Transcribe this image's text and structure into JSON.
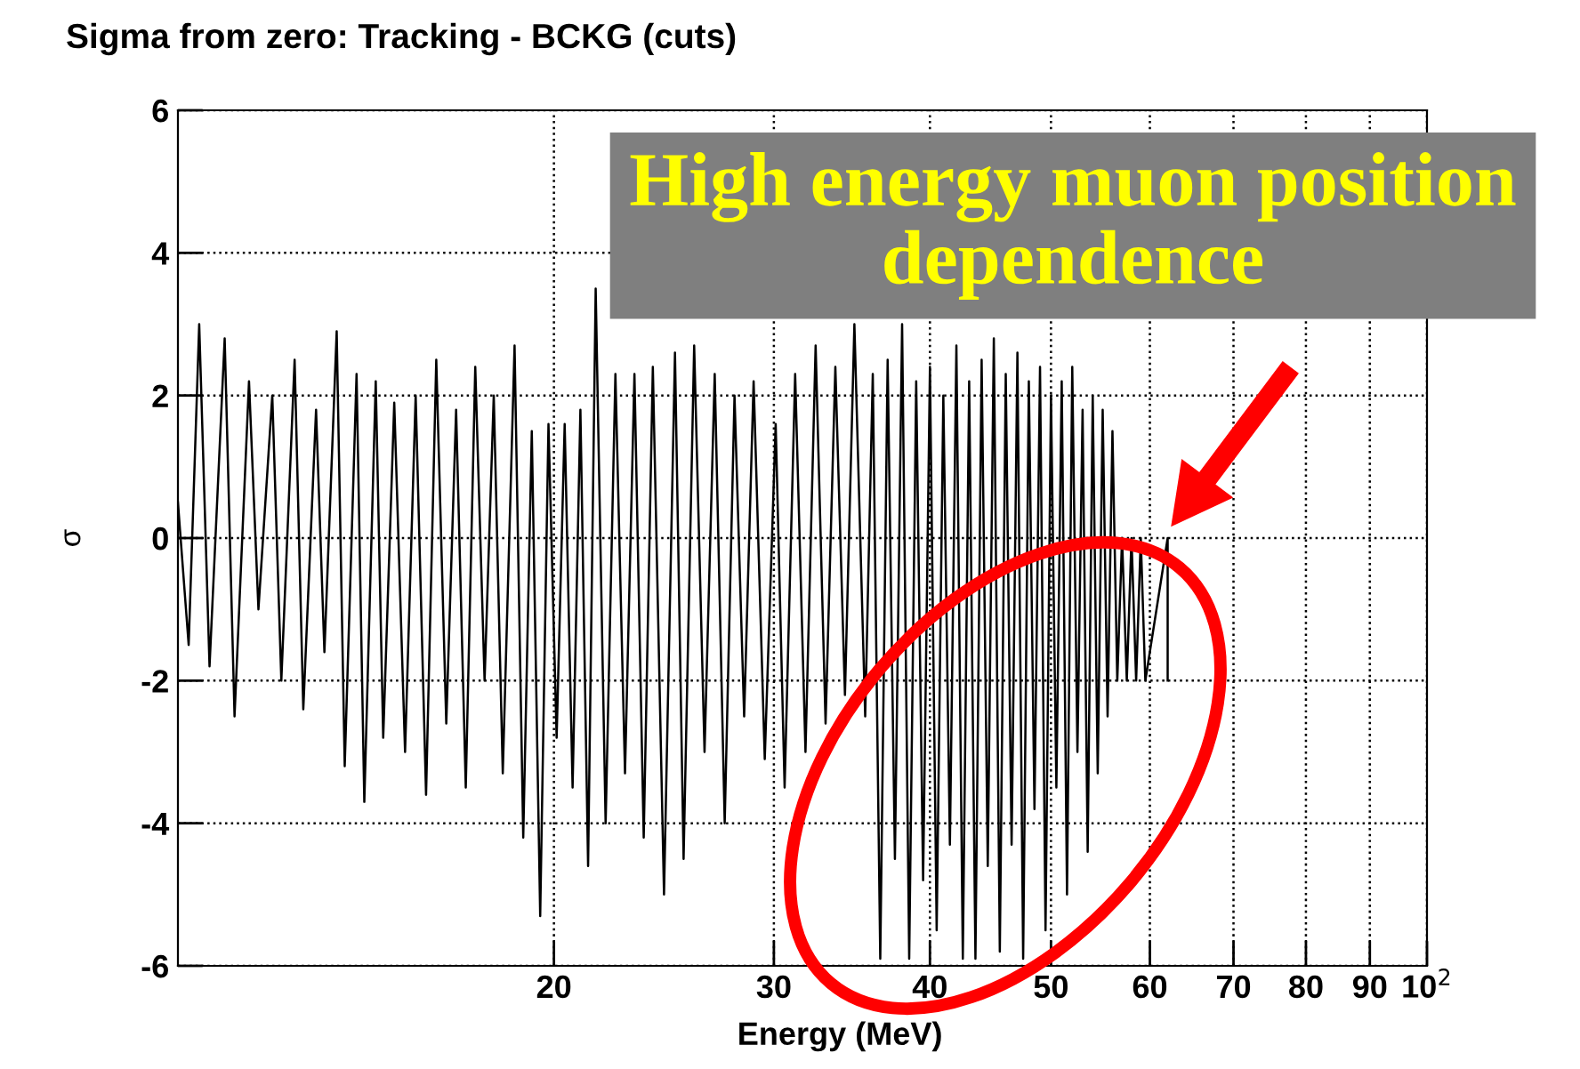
{
  "chart_data": {
    "type": "line",
    "title": "Sigma from zero: Tracking - BCKG (cuts)",
    "xlabel": "Energy (MeV)",
    "ylabel": "σ",
    "log": "x",
    "grid": true,
    "legend": false,
    "marker": "none",
    "line_style": "solid",
    "xlim": [
      10,
      100
    ],
    "xticks": [
      20,
      30,
      40,
      50,
      60,
      70,
      80,
      90,
      {
        "value": 100,
        "label": "10$^{2}$"
      }
    ],
    "ylim": [
      -6,
      6
    ],
    "yticks": [
      -6,
      -4,
      -2,
      0,
      2,
      4,
      6
    ],
    "annotations": [
      "High energy muon position dependence"
    ],
    "series": [
      {
        "color": "#000000",
        "x": [
          10.0,
          10.2,
          10.4,
          10.6,
          10.9,
          11.1,
          11.4,
          11.6,
          11.9,
          12.1,
          12.4,
          12.6,
          12.9,
          13.1,
          13.4,
          13.6,
          13.9,
          14.1,
          14.4,
          14.6,
          14.9,
          15.2,
          15.5,
          15.8,
          16.1,
          16.4,
          16.7,
          17.0,
          17.3,
          17.6,
          17.9,
          18.2,
          18.6,
          18.9,
          19.2,
          19.5,
          19.8,
          20.1,
          20.4,
          20.7,
          21.0,
          21.3,
          21.6,
          22.0,
          22.4,
          22.8,
          23.2,
          23.6,
          24.0,
          24.5,
          25.0,
          25.4,
          25.9,
          26.4,
          26.9,
          27.4,
          27.9,
          28.4,
          28.9,
          29.5,
          30.1,
          30.6,
          31.2,
          31.8,
          32.4,
          33.0,
          33.6,
          34.2,
          34.8,
          35.5,
          36.0,
          36.5,
          37.0,
          37.5,
          38.0,
          38.5,
          39.0,
          39.5,
          40.0,
          40.5,
          41.0,
          41.5,
          42.0,
          42.5,
          43.0,
          43.5,
          44.0,
          44.5,
          45.0,
          45.5,
          46.0,
          46.5,
          47.0,
          47.5,
          48.0,
          48.5,
          49.0,
          49.5,
          50.0,
          50.5,
          51.0,
          51.5,
          52.0,
          52.5,
          53.0,
          53.5,
          54.0,
          54.5,
          55.0,
          55.5,
          56.0,
          56.5,
          57.0,
          57.5,
          58.0,
          58.5,
          59.0,
          59.5,
          62.0,
          62.0
        ],
        "values": [
          0.5,
          -1.5,
          3.0,
          -1.8,
          2.8,
          -2.5,
          2.2,
          -1.0,
          2.0,
          -2.0,
          2.5,
          -2.4,
          1.8,
          -1.6,
          2.9,
          -3.2,
          2.3,
          -3.7,
          2.2,
          -2.8,
          1.9,
          -3.0,
          2.0,
          -3.6,
          2.5,
          -2.6,
          1.8,
          -3.5,
          2.4,
          -2.0,
          2.0,
          -3.3,
          2.7,
          -4.2,
          1.5,
          -5.3,
          1.6,
          -2.8,
          1.6,
          -3.5,
          1.8,
          -4.6,
          3.5,
          -4.0,
          2.3,
          -3.3,
          2.3,
          -4.2,
          2.4,
          -5.0,
          2.6,
          -4.5,
          2.7,
          -3.0,
          2.3,
          -4.0,
          2.0,
          -2.5,
          2.2,
          -3.1,
          1.6,
          -3.5,
          2.3,
          -3.0,
          2.7,
          -2.6,
          2.4,
          -2.2,
          3.0,
          -2.5,
          2.3,
          -5.9,
          2.5,
          -4.5,
          3.0,
          -5.9,
          2.2,
          -4.8,
          2.4,
          -5.5,
          2.0,
          -4.3,
          2.7,
          -5.9,
          2.2,
          -5.9,
          2.5,
          -4.6,
          2.8,
          -5.8,
          2.3,
          -4.3,
          2.6,
          -5.9,
          2.2,
          -3.8,
          2.4,
          -5.5,
          2.0,
          -3.5,
          2.2,
          -5.0,
          2.4,
          -3.0,
          1.8,
          -4.4,
          2.0,
          -3.3,
          1.8,
          -2.5,
          1.5,
          -2.0,
          0.0,
          -2.0,
          0.0,
          -2.0,
          0.0,
          -2.0,
          0.0,
          -2.0
        ]
      }
    ]
  }
}
